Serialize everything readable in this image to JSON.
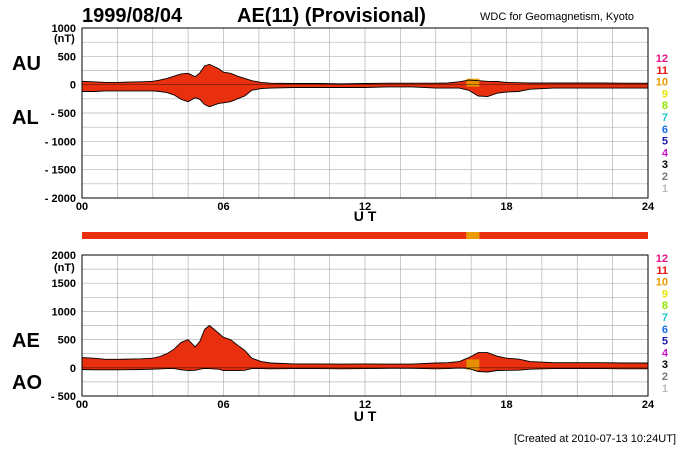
{
  "header": {
    "date": "1999/08/04",
    "title": "AE(11) (Provisional)",
    "source": "WDC for Geomagnetism, Kyoto"
  },
  "footer": {
    "created": "[Created at 2010-07-13 10:24UT]"
  },
  "legend": {
    "items": [
      {
        "label": "12",
        "color": "#e8117f"
      },
      {
        "label": "11",
        "color": "#e8110f"
      },
      {
        "label": "10",
        "color": "#e89a00"
      },
      {
        "label": "9",
        "color": "#e6e600"
      },
      {
        "label": "8",
        "color": "#8fe600"
      },
      {
        "label": "7",
        "color": "#19c8c8"
      },
      {
        "label": "6",
        "color": "#1a6fe8"
      },
      {
        "label": "5",
        "color": "#1a1ab4"
      },
      {
        "label": "4",
        "color": "#c814c8"
      },
      {
        "label": "3",
        "color": "#000000"
      },
      {
        "label": "2",
        "color": "#777777"
      },
      {
        "label": "1",
        "color": "#bbbbbb"
      }
    ]
  },
  "station_bar": {
    "segments": [
      {
        "from": 0,
        "to": 16.3,
        "stations": 11,
        "color": "#e8300f"
      },
      {
        "from": 16.3,
        "to": 16.85,
        "stations": 10,
        "color": "#e89a00"
      },
      {
        "from": 16.85,
        "to": 24,
        "stations": 11,
        "color": "#e8300f"
      }
    ]
  },
  "chart_data": [
    {
      "type": "area",
      "panel": "AU/AL",
      "labels_upper": "AU",
      "labels_lower": "AL",
      "unit_label": "(nT)",
      "xlabel": "U T",
      "x_ticks": [
        "00",
        "06",
        "12",
        "18",
        "24"
      ],
      "xlim": [
        0,
        24
      ],
      "ylim": [
        -2000,
        1000
      ],
      "y_ticks": [
        1000,
        500,
        0,
        -500,
        -1000,
        -1500,
        -2000
      ],
      "y_tick_labels": [
        "1000",
        "500",
        "0",
        "- 500",
        "- 1000",
        "- 1500",
        "- 2000"
      ],
      "grid": true,
      "fill_color": "#e8300f",
      "series": [
        {
          "name": "AU",
          "x": [
            0,
            0.5,
            1,
            1.5,
            2,
            2.5,
            3,
            3.3,
            3.6,
            3.9,
            4.2,
            4.5,
            4.8,
            5.0,
            5.2,
            5.4,
            5.6,
            5.8,
            6.0,
            6.3,
            6.6,
            6.9,
            7.2,
            7.6,
            8,
            9,
            10,
            11,
            12,
            13,
            14,
            15,
            15.5,
            16,
            16.4,
            16.8,
            17.2,
            17.6,
            18,
            18.5,
            19,
            20,
            21,
            22,
            23,
            24
          ],
          "values": [
            60,
            50,
            40,
            40,
            45,
            50,
            60,
            80,
            110,
            150,
            190,
            200,
            140,
            210,
            330,
            360,
            320,
            280,
            220,
            200,
            150,
            110,
            70,
            40,
            25,
            20,
            20,
            15,
            20,
            25,
            25,
            25,
            30,
            50,
            80,
            70,
            60,
            55,
            40,
            35,
            30,
            30,
            30,
            30,
            25,
            25
          ]
        },
        {
          "name": "AL",
          "x": [
            0,
            0.5,
            1,
            1.5,
            2,
            2.5,
            3,
            3.3,
            3.6,
            3.9,
            4.2,
            4.5,
            4.8,
            5.0,
            5.2,
            5.4,
            5.6,
            5.8,
            6.0,
            6.3,
            6.6,
            6.9,
            7.2,
            7.6,
            8,
            9,
            10,
            11,
            12,
            13,
            14,
            15,
            15.5,
            16,
            16.4,
            16.8,
            17.2,
            17.6,
            18,
            18.5,
            19,
            20,
            21,
            22,
            23,
            24
          ],
          "values": [
            -120,
            -120,
            -110,
            -110,
            -110,
            -110,
            -110,
            -120,
            -140,
            -180,
            -260,
            -300,
            -230,
            -260,
            -350,
            -390,
            -360,
            -330,
            -320,
            -300,
            -250,
            -200,
            -100,
            -70,
            -60,
            -50,
            -50,
            -50,
            -50,
            -40,
            -40,
            -60,
            -60,
            -60,
            -100,
            -200,
            -210,
            -150,
            -130,
            -120,
            -80,
            -60,
            -60,
            -60,
            -60,
            -60
          ]
        }
      ]
    },
    {
      "type": "area",
      "panel": "AE/AO",
      "labels_upper": "AE",
      "labels_lower": "AO",
      "unit_label": "(nT)",
      "xlabel": "U T",
      "x_ticks": [
        "00",
        "06",
        "12",
        "18",
        "24"
      ],
      "xlim": [
        0,
        24
      ],
      "ylim": [
        -500,
        2000
      ],
      "y_ticks": [
        2000,
        1500,
        1000,
        500,
        0,
        -500
      ],
      "y_tick_labels": [
        "2000",
        "1500",
        "1000",
        "500",
        "0",
        "- 500"
      ],
      "grid": true,
      "fill_color": "#e8300f",
      "series": [
        {
          "name": "AE",
          "x": [
            0,
            0.5,
            1,
            1.5,
            2,
            2.5,
            3,
            3.3,
            3.6,
            3.9,
            4.2,
            4.5,
            4.8,
            5.0,
            5.2,
            5.4,
            5.6,
            5.8,
            6.0,
            6.3,
            6.6,
            6.9,
            7.2,
            7.6,
            8,
            9,
            10,
            11,
            12,
            13,
            14,
            15,
            15.5,
            16,
            16.4,
            16.8,
            17.2,
            17.6,
            18,
            18.5,
            19,
            20,
            21,
            22,
            23,
            24
          ],
          "values": [
            180,
            170,
            150,
            150,
            155,
            160,
            170,
            200,
            250,
            330,
            450,
            500,
            370,
            470,
            680,
            750,
            680,
            610,
            540,
            500,
            400,
            310,
            170,
            110,
            85,
            70,
            70,
            65,
            70,
            65,
            65,
            85,
            90,
            110,
            180,
            270,
            270,
            205,
            170,
            155,
            110,
            90,
            90,
            90,
            85,
            85
          ]
        },
        {
          "name": "AO",
          "x": [
            0,
            0.5,
            1,
            1.5,
            2,
            2.5,
            3,
            3.3,
            3.6,
            3.9,
            4.2,
            4.5,
            4.8,
            5.0,
            5.2,
            5.4,
            5.6,
            5.8,
            6.0,
            6.3,
            6.6,
            6.9,
            7.2,
            7.6,
            8,
            9,
            10,
            11,
            12,
            13,
            14,
            15,
            15.5,
            16,
            16.4,
            16.8,
            17.2,
            17.6,
            18,
            18.5,
            19,
            20,
            21,
            22,
            23,
            24
          ],
          "values": [
            -30,
            -35,
            -35,
            -35,
            -33,
            -30,
            -25,
            -20,
            -15,
            -15,
            -35,
            -50,
            -45,
            -25,
            -10,
            -15,
            -20,
            -25,
            -50,
            -50,
            -50,
            -45,
            -15,
            -15,
            -18,
            -15,
            -15,
            -18,
            -15,
            -8,
            -8,
            -18,
            -15,
            -5,
            -10,
            -65,
            -75,
            -48,
            -45,
            -43,
            -25,
            -15,
            -15,
            -15,
            -18,
            -18
          ]
        }
      ]
    }
  ]
}
